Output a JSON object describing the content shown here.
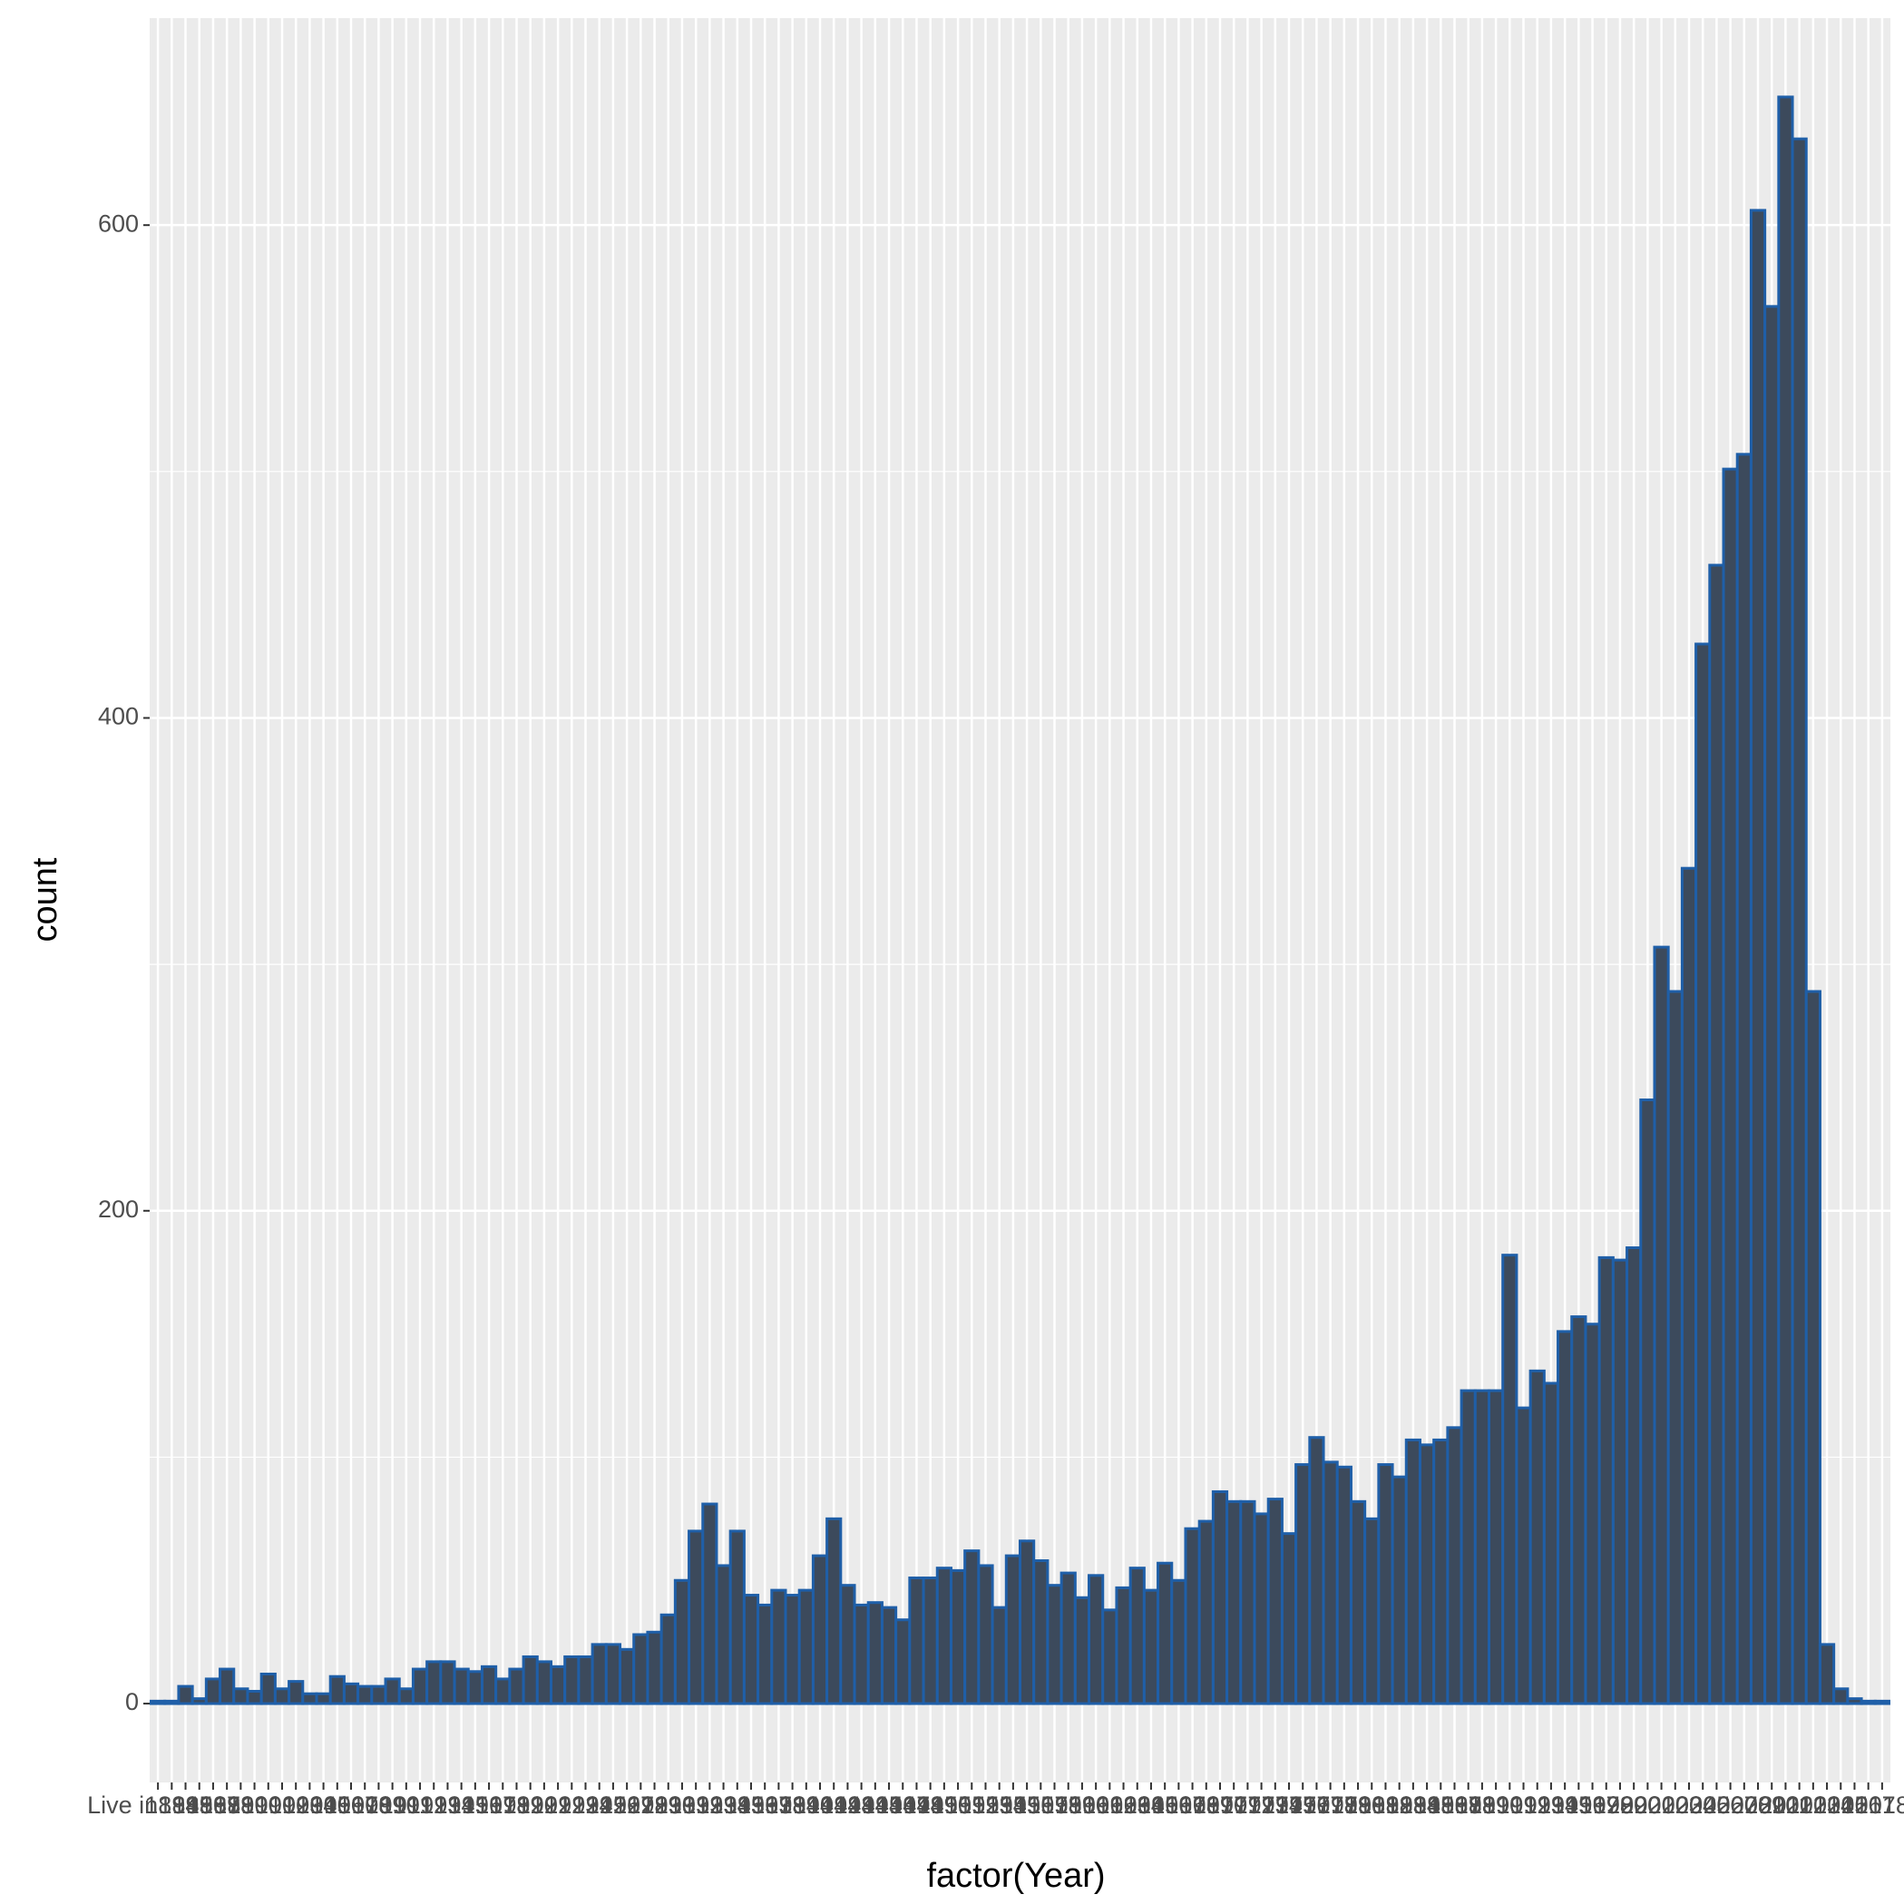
{
  "chart_data": {
    "type": "bar",
    "x_label": "factor(Year)",
    "y_label": "count",
    "categories": [
      "Live in",
      "1894",
      "1895",
      "1896",
      "1897",
      "1898",
      "1899",
      "1900",
      "1901",
      "1902",
      "1903",
      "1904",
      "1905",
      "1906",
      "1907",
      "1908",
      "1909",
      "1910",
      "1911",
      "1912",
      "1913",
      "1914",
      "1915",
      "1916",
      "1917",
      "1918",
      "1919",
      "1920",
      "1921",
      "1922",
      "1923",
      "1924",
      "1925",
      "1926",
      "1927",
      "1928",
      "1929",
      "1930",
      "1931",
      "1932",
      "1933",
      "1934",
      "1935",
      "1936",
      "1937",
      "1938",
      "1939",
      "1940",
      "1941",
      "1942",
      "1943",
      "1944",
      "1945",
      "1946",
      "1947",
      "1948",
      "1949",
      "1950",
      "1951",
      "1952",
      "1953",
      "1954",
      "1955",
      "1956",
      "1957",
      "1958",
      "1959",
      "1960",
      "1961",
      "1962",
      "1963",
      "1964",
      "1965",
      "1966",
      "1967",
      "1968",
      "1969",
      "1970",
      "1971",
      "1972",
      "1973",
      "1974",
      "1975",
      "1976",
      "1977",
      "1978",
      "1979",
      "1980",
      "1981",
      "1982",
      "1983",
      "1984",
      "1985",
      "1986",
      "1987",
      "1988",
      "1989",
      "1990",
      "1991",
      "1992",
      "1993",
      "1994",
      "1995",
      "1996",
      "1997",
      "1998",
      "1999",
      "2000",
      "2001",
      "2002",
      "2003",
      "2004",
      "2005",
      "2006",
      "2007",
      "2008",
      "2009",
      "2010",
      "2011",
      "2012",
      "2013",
      "2014",
      "2015",
      "2016",
      "2017",
      "2018"
    ],
    "values": [
      1,
      1,
      7,
      2,
      10,
      14,
      6,
      5,
      12,
      6,
      9,
      4,
      4,
      11,
      8,
      7,
      7,
      10,
      6,
      14,
      17,
      17,
      14,
      13,
      15,
      10,
      14,
      19,
      17,
      15,
      19,
      19,
      24,
      24,
      22,
      28,
      29,
      36,
      50,
      70,
      81,
      56,
      70,
      44,
      40,
      46,
      44,
      46,
      60,
      75,
      48,
      40,
      41,
      39,
      34,
      51,
      51,
      55,
      54,
      62,
      56,
      39,
      60,
      66,
      58,
      48,
      53,
      43,
      52,
      38,
      47,
      55,
      46,
      57,
      50,
      71,
      74,
      86,
      82,
      82,
      77,
      83,
      69,
      97,
      108,
      98,
      96,
      82,
      75,
      97,
      92,
      107,
      105,
      107,
      112,
      127,
      127,
      127,
      182,
      120,
      135,
      130,
      151,
      157,
      154,
      181,
      180,
      185,
      245,
      307,
      289,
      339,
      430,
      462,
      501,
      507,
      606,
      567,
      652,
      635,
      289,
      24,
      6,
      2,
      1,
      1
    ],
    "color": "#3c4a5c",
    "edge_color": "#1f5fa8",
    "ylim": [
      -32,
      684
    ],
    "yticks": [
      0,
      200,
      400,
      600
    ],
    "grid": true
  }
}
